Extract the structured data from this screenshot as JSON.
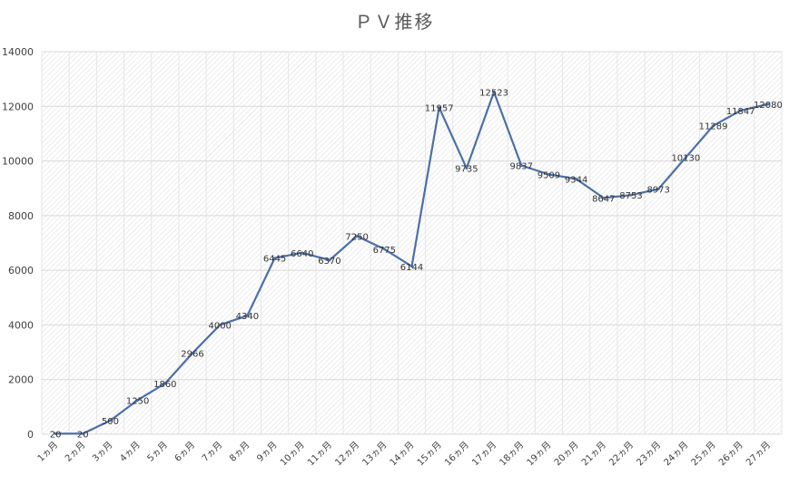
{
  "chart_data": {
    "type": "line",
    "title": "ＰＶ推移",
    "categories": [
      "1ヵ月",
      "2ヵ月",
      "3ヵ月",
      "4ヵ月",
      "5ヵ月",
      "6ヵ月",
      "7ヵ月",
      "8ヵ月",
      "9ヵ月",
      "10ヵ月",
      "11ヵ月",
      "12ヵ月",
      "13ヵ月",
      "14ヵ月",
      "15ヵ月",
      "16ヵ月",
      "17ヵ月",
      "18ヵ月",
      "19ヵ月",
      "20ヵ月",
      "21ヵ月",
      "22ヵ月",
      "23ヵ月",
      "24ヵ月",
      "25ヵ月",
      "26ヵ月",
      "27ヵ月"
    ],
    "series": [
      {
        "name": "PV",
        "values": [
          20,
          20,
          500,
          1250,
          1860,
          2966,
          4000,
          4340,
          6445,
          6640,
          6370,
          7250,
          6775,
          6144,
          11957,
          9735,
          12523,
          9837,
          9509,
          9344,
          8647,
          8753,
          8973,
          10130,
          11289,
          11847,
          12080
        ],
        "color": "#4a70a8"
      }
    ],
    "ylim": [
      0,
      14000
    ],
    "yticks": [
      0,
      2000,
      4000,
      6000,
      8000,
      10000,
      12000,
      14000
    ],
    "xlabel": "",
    "ylabel": "",
    "grid": true
  }
}
